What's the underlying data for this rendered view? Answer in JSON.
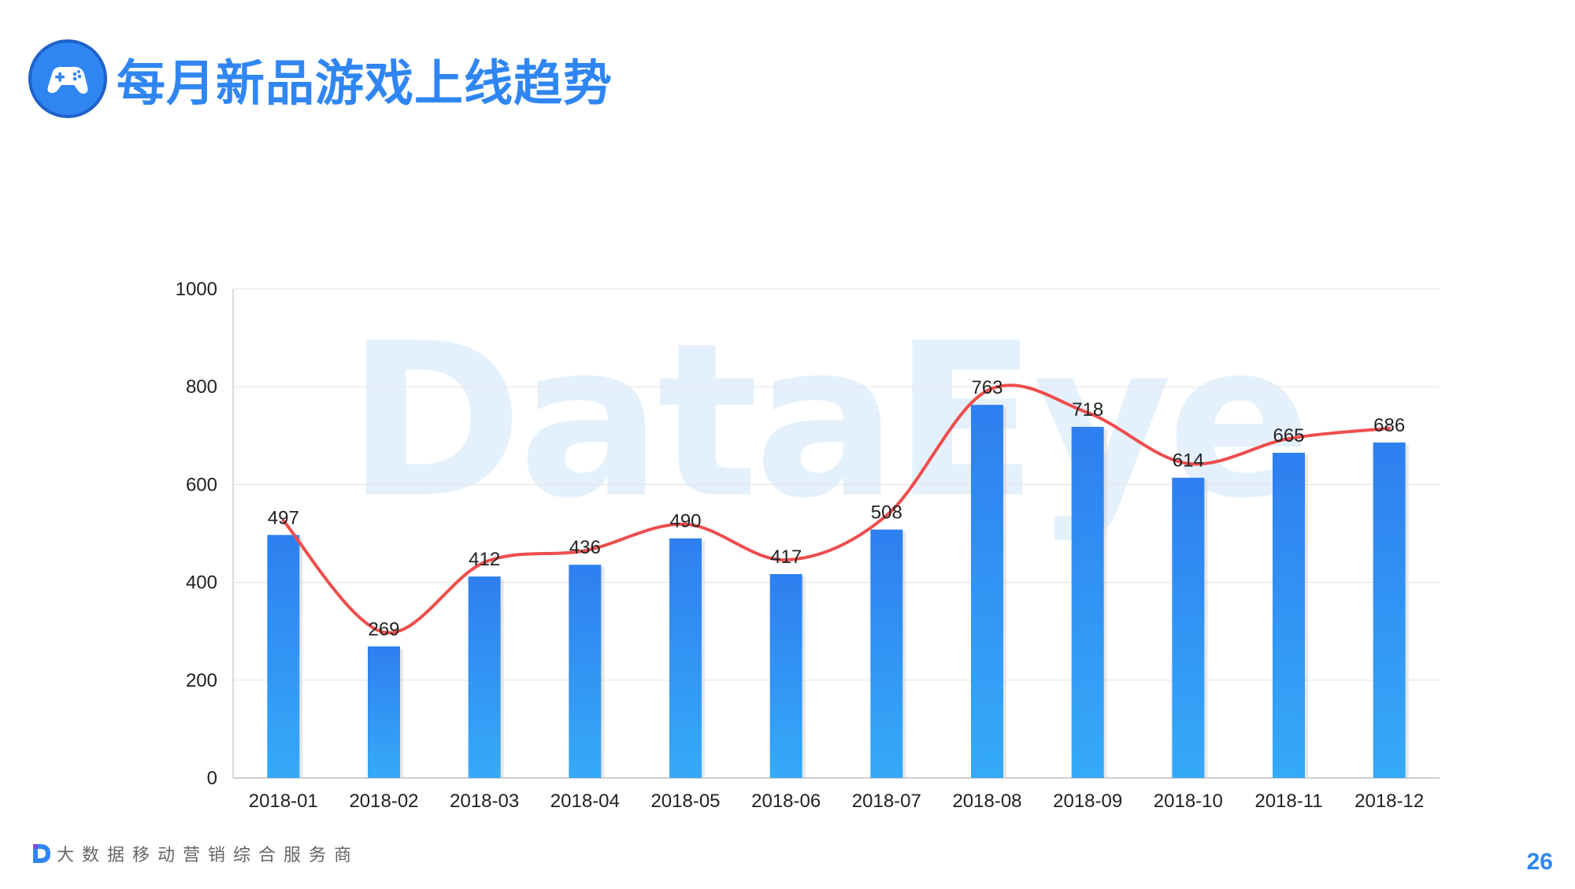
{
  "header": {
    "title": "每月新品游戏上线趋势",
    "icon": "gamepad-icon"
  },
  "watermark": "DataEye",
  "footer": {
    "tagline": "大数据移动营销综合服务商",
    "logo": "dataeye-d-logo"
  },
  "page_number": "26",
  "colors": {
    "accent": "#2f86f3",
    "bar_top": "#2e7ff0",
    "bar_bottom": "#35aaf8",
    "line": "#ee4d4d",
    "grid": "#e6e6e6",
    "axis": "#cfcfcf"
  },
  "chart_data": {
    "type": "bar",
    "categories": [
      "2018-01",
      "2018-02",
      "2018-03",
      "2018-04",
      "2018-05",
      "2018-06",
      "2018-07",
      "2018-08",
      "2018-09",
      "2018-10",
      "2018-11",
      "2018-12"
    ],
    "values": [
      497,
      269,
      412,
      436,
      490,
      417,
      508,
      763,
      718,
      614,
      665,
      686
    ],
    "data_labels": [
      "497",
      "269",
      "412",
      "436",
      "490",
      "417",
      "508",
      "763",
      "718",
      "614",
      "665",
      "686"
    ],
    "overlay": "smoothed red trend line through bar values",
    "ylim": [
      0,
      1000
    ],
    "yticks": [
      0,
      200,
      400,
      600,
      800,
      1000
    ],
    "ytick_labels": [
      "0",
      "200",
      "400",
      "600",
      "800",
      "1000"
    ],
    "grid": true,
    "legend": "none"
  }
}
